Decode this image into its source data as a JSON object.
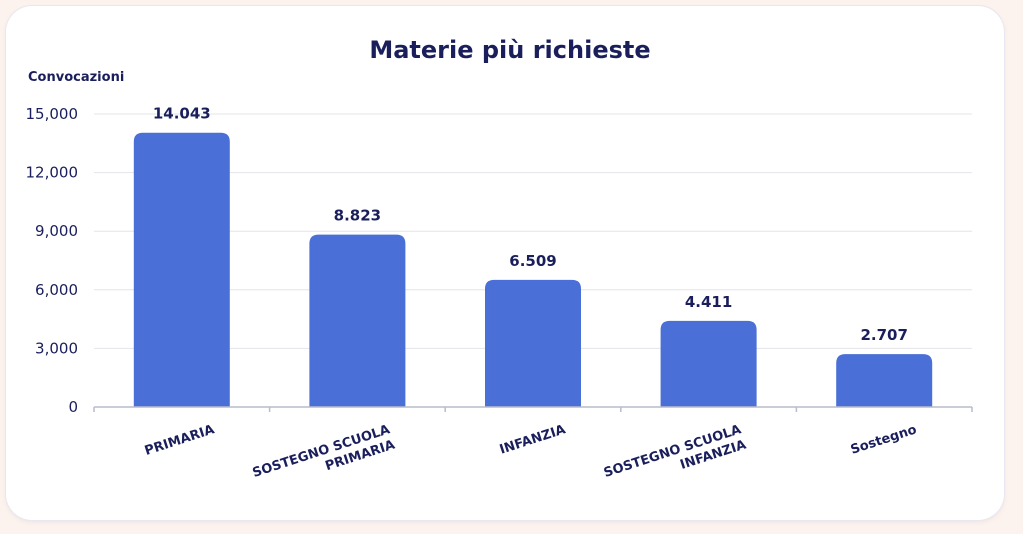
{
  "chart_data": {
    "type": "bar",
    "title": "Materie più richieste",
    "ylabel": "Convocazioni",
    "xlabel": "",
    "ylim": [
      0,
      15000
    ],
    "yticks": [
      {
        "value": 0,
        "label": "0"
      },
      {
        "value": 3000,
        "label": "3,000"
      },
      {
        "value": 6000,
        "label": "6,000"
      },
      {
        "value": 9000,
        "label": "9,000"
      },
      {
        "value": 12000,
        "label": "12,000"
      },
      {
        "value": 15000,
        "label": "15,000"
      }
    ],
    "grid": true,
    "bar_color": "#4a6fd6",
    "categories": [
      [
        "PRIMARIA"
      ],
      [
        "SOSTEGNO SCUOLA",
        "PRIMARIA"
      ],
      [
        "INFANZIA"
      ],
      [
        "SOSTEGNO SCUOLA",
        "INFANZIA"
      ],
      [
        "Sostegno"
      ]
    ],
    "values": [
      14043,
      8823,
      6509,
      4411,
      2707
    ],
    "data_labels": [
      "14.043",
      "8.823",
      "6.509",
      "4.411",
      "2.707"
    ]
  }
}
